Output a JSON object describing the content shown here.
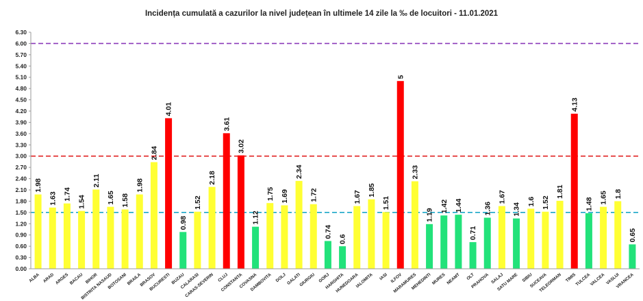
{
  "chart_data": {
    "type": "bar",
    "title": "Incidența cumulată a cazurilor la nivel județean în ultimele 14 zile la ‰ de locuitori - 11.01.2021",
    "xlabel": "",
    "ylabel": "",
    "ylim": [
      0,
      6.3
    ],
    "y_ticks": [
      "0.00",
      "0.30",
      "0.60",
      "0.90",
      "1.20",
      "1.50",
      "1.80",
      "2.10",
      "2.40",
      "2.70",
      "3.00",
      "3.30",
      "3.60",
      "3.90",
      "4.20",
      "4.50",
      "4.80",
      "5.10",
      "5.40",
      "5.70",
      "6.00",
      "6.30"
    ],
    "grid": false,
    "legend": "none",
    "categories": [
      "ALBA",
      "ARAD",
      "ARGES",
      "BACAU",
      "BIHOR",
      "BISTRITA NASAUD",
      "BOTOSANI",
      "BRAILA",
      "BRASOV",
      "BUCURESTI",
      "BUZAU",
      "CALARASI",
      "CARAS-SEVERIN",
      "CLUJ",
      "CONSTANTA",
      "COVASNA",
      "DAMBOVITA",
      "DOLJ",
      "GALATI",
      "GIURGIU",
      "GORJ",
      "HARGHITA",
      "HUNEDOARA",
      "IALOMITA",
      "IASI",
      "ILFOV",
      "MARAMURES",
      "MEHEDINTI",
      "MURES",
      "NEAMT",
      "OLT",
      "PRAHOVA",
      "SALAJ",
      "SATU MARE",
      "SIBIU",
      "SUCEAVA",
      "TELEORMAN",
      "TIMIS",
      "TULCEA",
      "VALCEA",
      "VASLUI",
      "VRANCEA"
    ],
    "values": [
      1.98,
      1.63,
      1.74,
      1.54,
      2.11,
      1.65,
      1.58,
      1.98,
      2.84,
      4.01,
      0.98,
      1.52,
      2.18,
      3.61,
      3.02,
      1.12,
      1.75,
      1.69,
      2.34,
      1.72,
      0.74,
      0.6,
      1.67,
      1.85,
      1.51,
      5,
      2.33,
      1.19,
      1.42,
      1.44,
      0.71,
      1.36,
      1.67,
      1.34,
      1.6,
      1.52,
      1.81,
      4.13,
      1.48,
      1.65,
      1.8,
      0.65
    ],
    "value_labels": [
      "1.98",
      "1.63",
      "1.74",
      "1.54",
      "2.11",
      "1.65",
      "1.58",
      "1.98",
      "2.84",
      "4.01",
      "0.98",
      "1.52",
      "2.18",
      "3.61",
      "3.02",
      "1.12",
      "1.75",
      "1.69",
      "2.34",
      "1.72",
      "0.74",
      "0.6",
      "1.67",
      "1.85",
      "1.51",
      "5",
      "2.33",
      "1.19",
      "1.42",
      "1.44",
      "0.71",
      "1.36",
      "1.67",
      "1.34",
      "1.6",
      "1.52",
      "1.81",
      "4.13",
      "1.48",
      "1.65",
      "1.8",
      "0.65"
    ],
    "colors": {
      "low": "#22e27a",
      "mid": "#ffff33",
      "high": "#ff0000",
      "axis": "#9a9a9a"
    },
    "color_thresholds": [
      1.5,
      3.0
    ],
    "reference_lines": [
      {
        "name": "threshold-1.5",
        "value": 1.5,
        "color": "#1aa7c8"
      },
      {
        "name": "threshold-3.0",
        "value": 3.0,
        "color": "#e02020"
      },
      {
        "name": "threshold-6.0",
        "value": 6.0,
        "color": "#8a3ab9"
      }
    ]
  }
}
